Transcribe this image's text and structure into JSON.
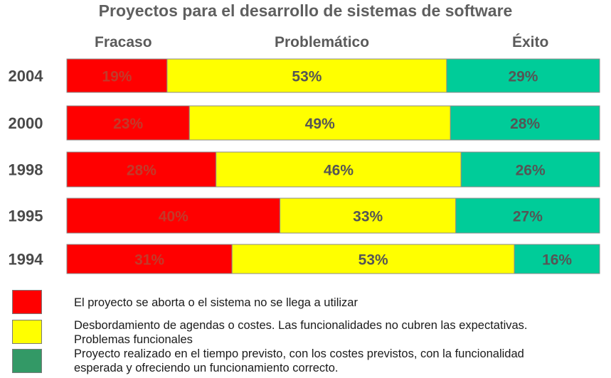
{
  "chart_data": {
    "type": "bar",
    "orientation": "horizontal",
    "stacked": true,
    "percent_stacked": true,
    "title": "Proyectos para el desarrollo de sistemas de software",
    "categories": [
      "2004",
      "2000",
      "1998",
      "1995",
      "1994"
    ],
    "series": [
      {
        "name": "Fracaso",
        "color": "#ff0000",
        "values": [
          19,
          23,
          28,
          40,
          31
        ]
      },
      {
        "name": "Problemático",
        "color": "#ffff00",
        "values": [
          53,
          49,
          46,
          33,
          53
        ]
      },
      {
        "name": "Éxito",
        "color": "#00cc99",
        "values": [
          29,
          28,
          26,
          27,
          16
        ]
      }
    ],
    "value_suffix": "%",
    "grid": false,
    "legend_position": "bottom"
  },
  "legend": [
    {
      "color": "#ff0000",
      "text": "El proyecto se aborta o el sistema no se llega a utilizar"
    },
    {
      "color": "#ffff00",
      "text": "Desbordamiento de agendas o costes. Las funcionalidades no cubren las expectativas. Problemas funcionales"
    },
    {
      "color": "#339966",
      "text": "Proyecto realizado en el tiempo previsto, con los costes previstos, con la funcionalidad esperada y ofreciendo un funcionamiento correcto."
    }
  ]
}
